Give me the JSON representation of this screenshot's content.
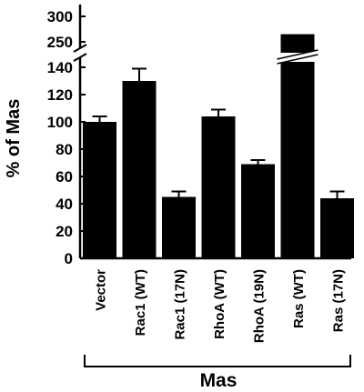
{
  "chart_data": {
    "type": "bar",
    "title": "",
    "xlabel": "Mas",
    "ylabel": "% of Mas",
    "categories": [
      "Vector",
      "Rac1 (WT)",
      "Rac1 (17N)",
      "RhoA (WT)",
      "RhoA (19N)",
      "Ras (WT)",
      "Ras (17N)"
    ],
    "values": [
      100,
      130,
      45,
      104,
      69,
      265,
      44
    ],
    "error": [
      4,
      9,
      4,
      5,
      3,
      null,
      5
    ],
    "ylim_lower": [
      0,
      140
    ],
    "ylim_upper": [
      250,
      300
    ],
    "yticks_lower": [
      0,
      20,
      40,
      60,
      80,
      100,
      120,
      140
    ],
    "yticks_upper": [
      250,
      300
    ],
    "axis_break": true,
    "grid": false,
    "bar_color": "#000000"
  }
}
